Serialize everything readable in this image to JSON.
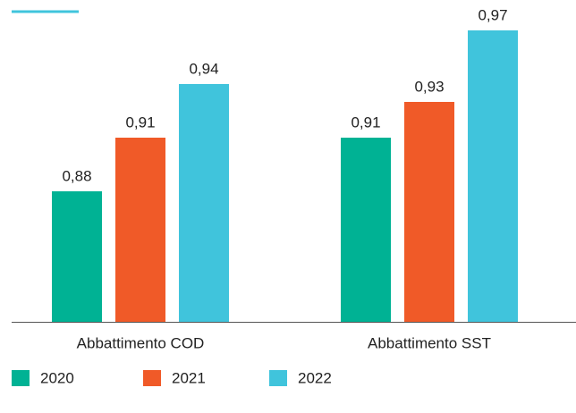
{
  "chart_data": {
    "type": "bar",
    "categories": [
      "Abbattimento COD",
      "Abbattimento SST"
    ],
    "series": [
      {
        "name": "2020",
        "color": "#00b294",
        "values": [
          0.88,
          0.91
        ],
        "value_labels": [
          "0,88",
          "0,91"
        ]
      },
      {
        "name": "2021",
        "color": "#f05a28",
        "values": [
          0.91,
          0.93
        ],
        "value_labels": [
          "0,91",
          "0,93"
        ]
      },
      {
        "name": "2022",
        "color": "#40c4dc",
        "values": [
          0.94,
          0.97
        ],
        "value_labels": [
          "0,94",
          "0,97"
        ]
      }
    ],
    "ylim": [
      0.807,
      0.97
    ]
  }
}
